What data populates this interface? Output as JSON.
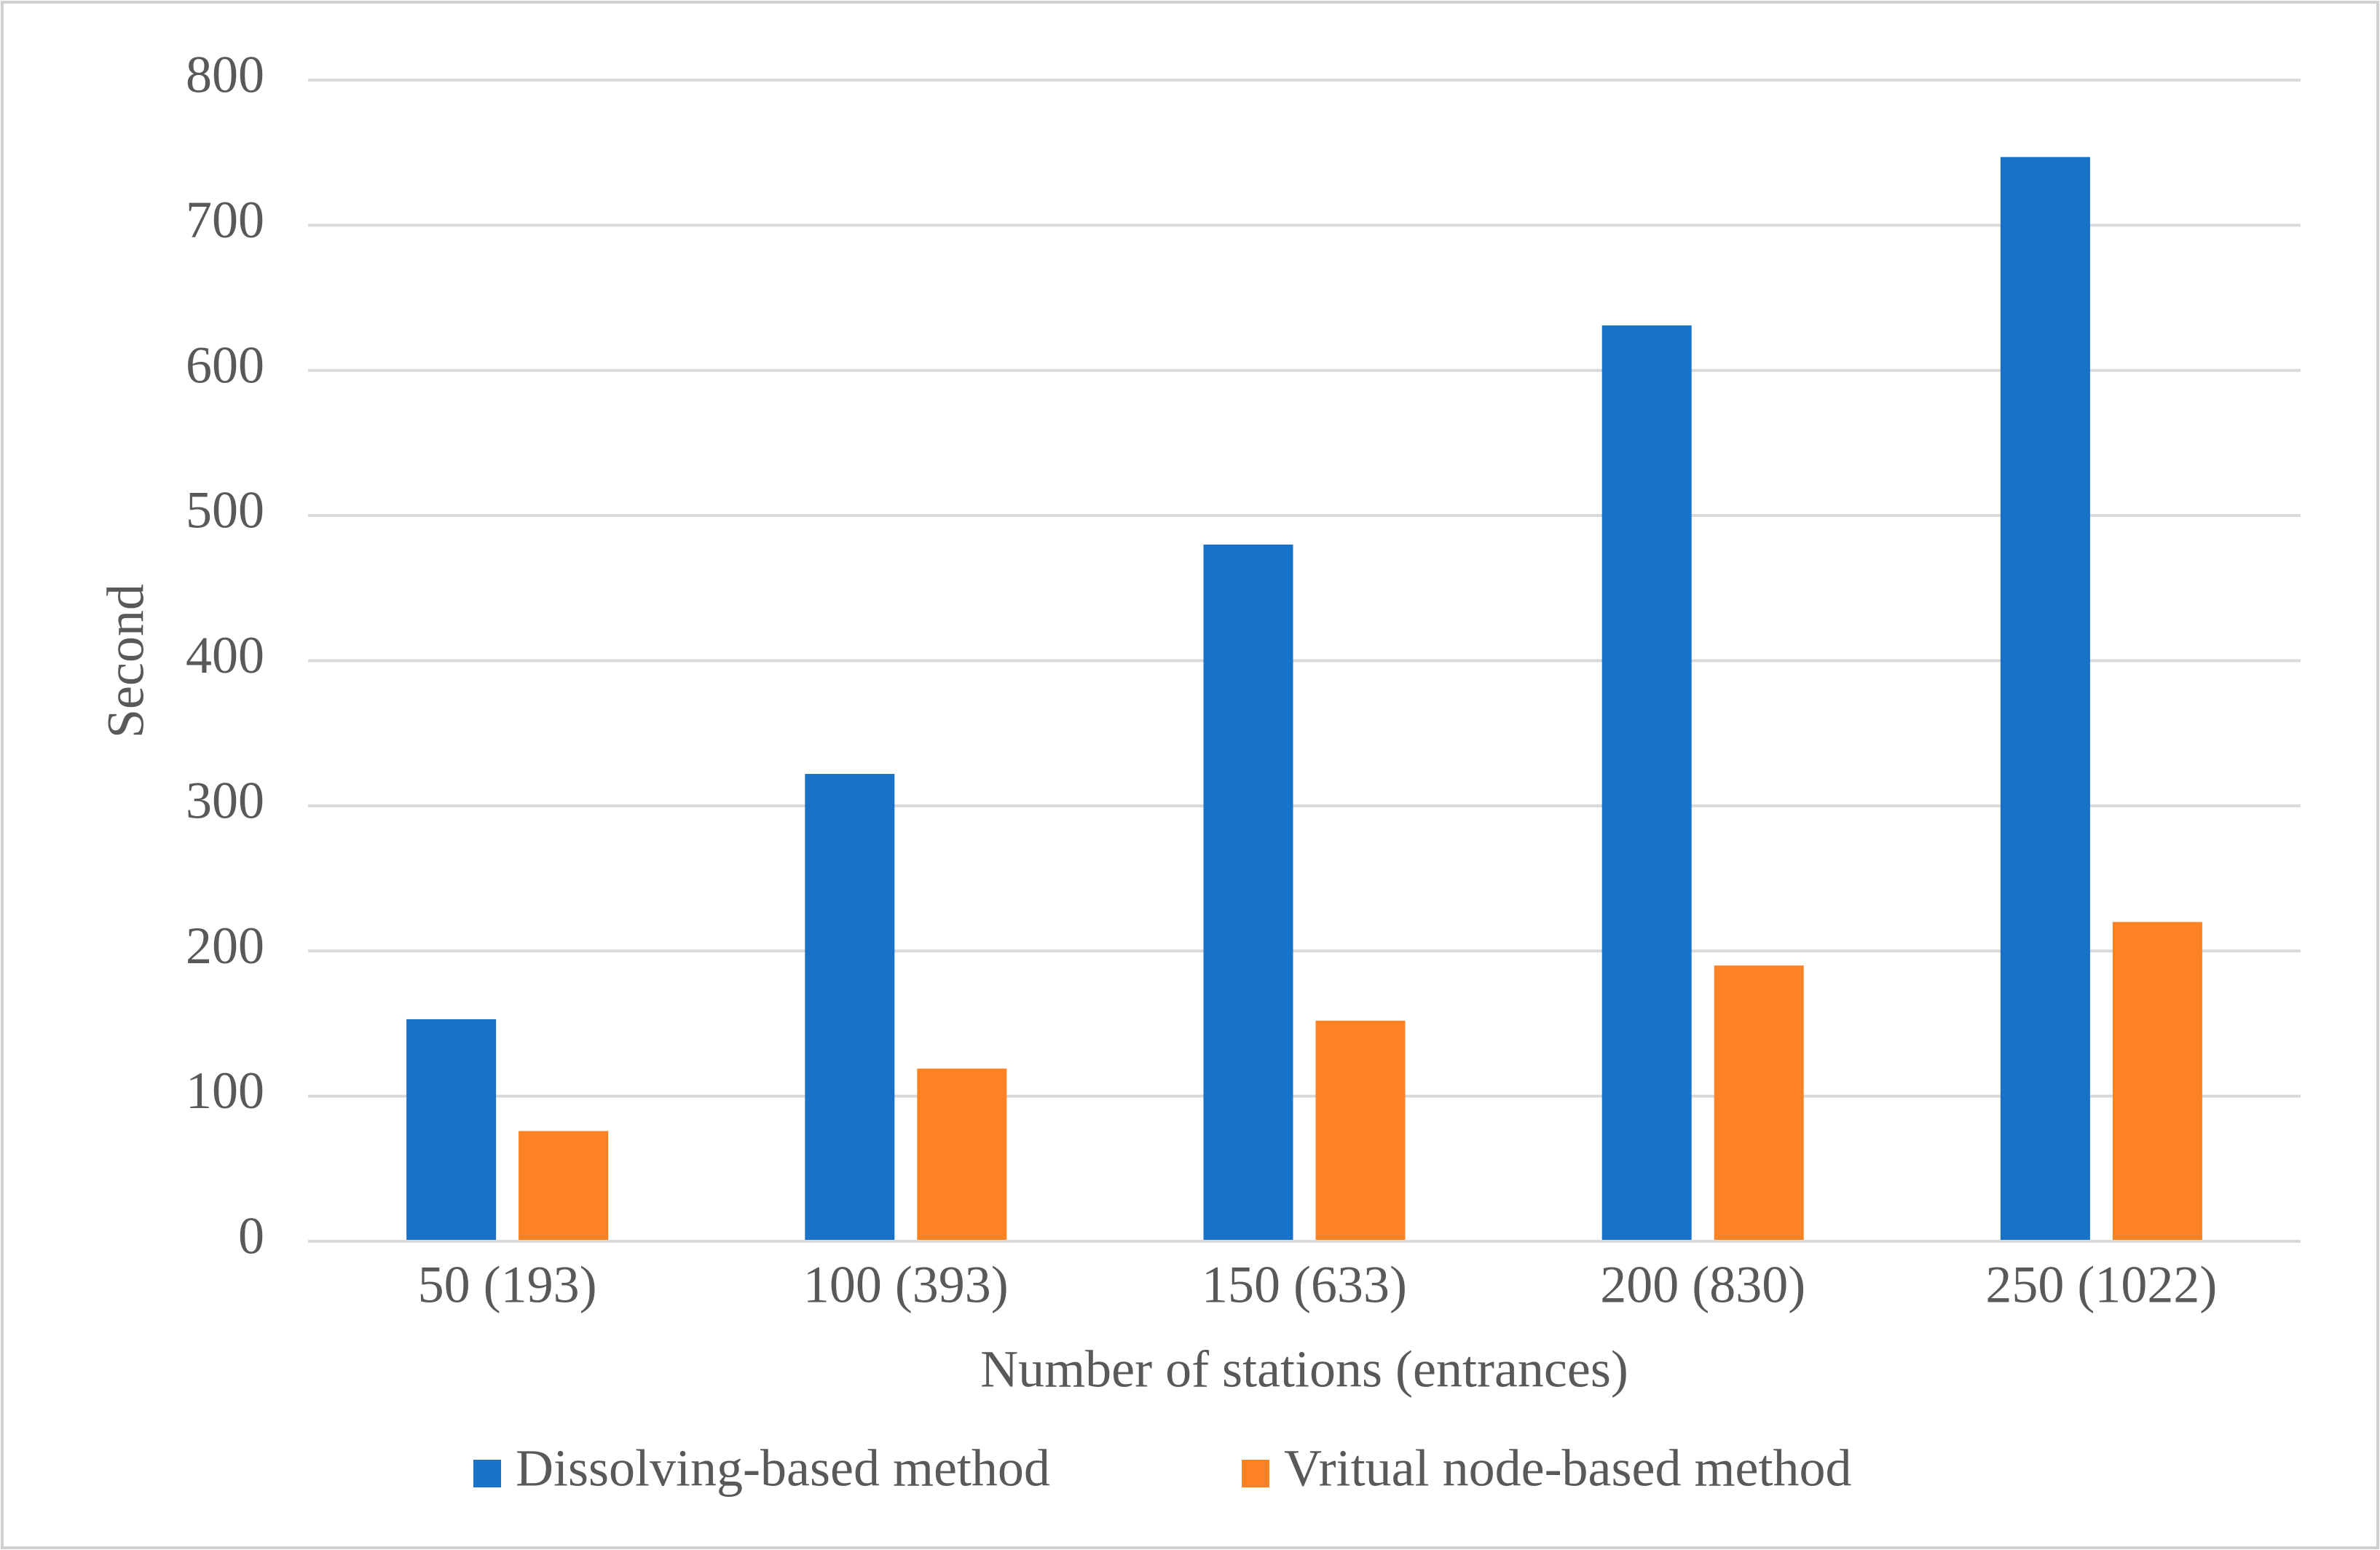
{
  "chart_data": {
    "type": "bar",
    "y_label": "Second",
    "x_label": "Number of stations (entrances)",
    "categories": [
      "50 (193)",
      "100 (393)",
      "150 (633)",
      "200 (830)",
      "250 (1022)"
    ],
    "series": [
      {
        "name": "Dissolving-based method",
        "color": "#1872c8",
        "values": [
          153,
          322,
          480,
          631,
          747
        ]
      },
      {
        "name": "Vritual node-based method",
        "color": "#fd8224",
        "values": [
          76,
          119,
          152,
          190,
          220
        ]
      }
    ],
    "ylim": [
      0,
      800
    ],
    "yticks": [
      0,
      100,
      200,
      300,
      400,
      500,
      600,
      700,
      800
    ],
    "grid": true,
    "legend": "bottom"
  }
}
